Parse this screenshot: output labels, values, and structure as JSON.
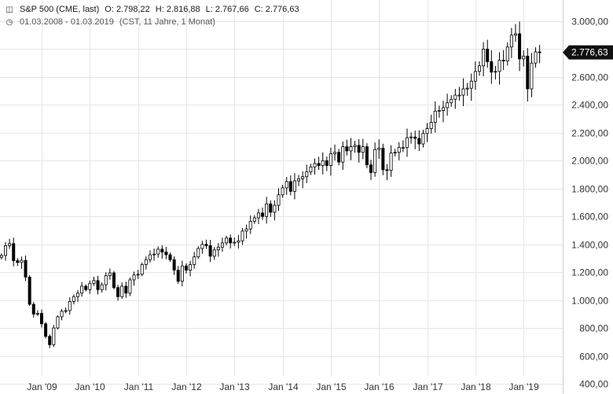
{
  "header": {
    "icon": "candlestick-chart-icon",
    "instrument": "S&P 500 (CME, last)",
    "open": "O: 2.798,22",
    "high": "H: 2.816,88",
    "low": "L: 2.767,66",
    "close": "C: 2.776,63",
    "clock_icon": "clock-icon",
    "range": "01.03.2008 - 01.03.2019",
    "meta": "(CST, 11 Jahre, 1 Monat)"
  },
  "last_label": "2.776,63",
  "chart_data": {
    "type": "candlestick",
    "period": "monthly",
    "start": "2008-03",
    "ylim": [
      400,
      3100
    ],
    "yticks": [
      400,
      600,
      800,
      1000,
      1200,
      1400,
      1600,
      1800,
      2000,
      2200,
      2400,
      2600,
      2800,
      3000
    ],
    "ytick_labels": [
      "400,00",
      "600,00",
      "800,00",
      "1.000,00",
      "1.200,00",
      "1.400,00",
      "1.600,00",
      "1.800,00",
      "2.000,00",
      "2.200,00",
      "2.400,00",
      "2.600,00",
      "2.800,00",
      "3.000,00"
    ],
    "xtick_labels": [
      "Jan '09",
      "Jan '10",
      "Jan '11",
      "Jan '12",
      "Jan '13",
      "Jan '14",
      "Jan '15",
      "Jan '16",
      "Jan '17",
      "Jan '18",
      "Jan '19"
    ],
    "last_value": 2776.63,
    "grid": true,
    "colors": {
      "candle": "#000000",
      "grid": "#e6e6e6",
      "last_label_bg": "#111111"
    },
    "close": [
      1320,
      1390,
      1405,
      1283,
      1270,
      1285,
      1165,
      970,
      900,
      905,
      830,
      740,
      680,
      800,
      880,
      920,
      925,
      990,
      1025,
      1050,
      1100,
      1075,
      1120,
      1140,
      1075,
      1110,
      1175,
      1195,
      1090,
      1025,
      1100,
      1050,
      1145,
      1180,
      1185,
      1255,
      1290,
      1325,
      1330,
      1365,
      1345,
      1325,
      1290,
      1215,
      1135,
      1245,
      1215,
      1255,
      1310,
      1370,
      1400,
      1390,
      1315,
      1360,
      1380,
      1410,
      1445,
      1410,
      1415,
      1425,
      1495,
      1510,
      1565,
      1590,
      1625,
      1600,
      1690,
      1630,
      1680,
      1755,
      1805,
      1850,
      1780,
      1855,
      1870,
      1885,
      1920,
      1955,
      1980,
      1965,
      2000,
      1965,
      2050,
      2060,
      1990,
      2100,
      2070,
      2100,
      2110,
      2060,
      2100,
      1970,
      1915,
      2080,
      2090,
      1935,
      1930,
      2055,
      2060,
      2095,
      2095,
      2165,
      2170,
      2160,
      2120,
      2195,
      2230,
      2275,
      2355,
      2360,
      2380,
      2415,
      2440,
      2470,
      2470,
      2515,
      2520,
      2570,
      2640,
      2680,
      2800,
      2710,
      2635,
      2640,
      2720,
      2715,
      2815,
      2900,
      2910,
      2730,
      2750,
      2515,
      2700,
      2780,
      2776.63
    ]
  }
}
